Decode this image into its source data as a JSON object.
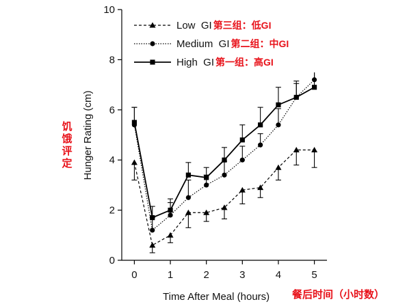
{
  "chart_data": {
    "type": "line",
    "xlabel": "Time After Meal (hours)",
    "xlabel_cn": "餐后时间（小时数）",
    "ylabel": "Hunger Rating (cm)",
    "ylabel_cn": "饥饿评定",
    "xlim": [
      -0.35,
      5.35
    ],
    "ylim": [
      0,
      10
    ],
    "x_ticks": [
      "0",
      "1",
      "2",
      "3",
      "4",
      "5"
    ],
    "y_ticks": [
      "0",
      "2",
      "4",
      "6",
      "8",
      "10"
    ],
    "grid": false,
    "legend_position": "top-left",
    "series": [
      {
        "name": "Low  GI",
        "name_cn": "第三组：低GI",
        "line": "dashed",
        "marker": "triangle",
        "x": [
          0,
          0.5,
          1,
          1.5,
          2,
          2.5,
          3,
          3.5,
          4,
          4.5,
          5
        ],
        "y": [
          3.9,
          0.6,
          1.0,
          1.9,
          1.9,
          2.1,
          2.8,
          2.9,
          3.7,
          4.4,
          4.4
        ],
        "err": [
          0.7,
          0.3,
          0.3,
          0.6,
          0.35,
          0.45,
          0.55,
          0.4,
          0.5,
          0.6,
          0.7
        ]
      },
      {
        "name": "Medium  GI",
        "name_cn": "第二组：中GI",
        "line": "dotted",
        "marker": "circle",
        "x": [
          0,
          0.5,
          1,
          1.5,
          2,
          2.5,
          3,
          3.5,
          4,
          4.5,
          5
        ],
        "y": [
          5.4,
          1.2,
          1.8,
          2.5,
          3.0,
          3.4,
          4.0,
          4.6,
          5.4,
          6.5,
          7.2
        ],
        "err": [
          0.7,
          0.5,
          0.5,
          0.7,
          0.4,
          0.55,
          0.55,
          0.45,
          0.65,
          0.55,
          0.4
        ]
      },
      {
        "name": "High  GI",
        "name_cn": "第一组：高GI",
        "line": "solid",
        "marker": "square",
        "x": [
          0,
          0.5,
          1,
          1.5,
          2,
          2.5,
          3,
          3.5,
          4,
          4.5,
          5
        ],
        "y": [
          5.5,
          1.7,
          2.0,
          3.4,
          3.3,
          4.0,
          4.8,
          5.4,
          6.2,
          6.5,
          6.9
        ],
        "err": [
          0.6,
          0.45,
          0.45,
          0.5,
          0.4,
          0.5,
          0.6,
          0.7,
          0.7,
          0.65,
          0.7
        ]
      }
    ]
  }
}
